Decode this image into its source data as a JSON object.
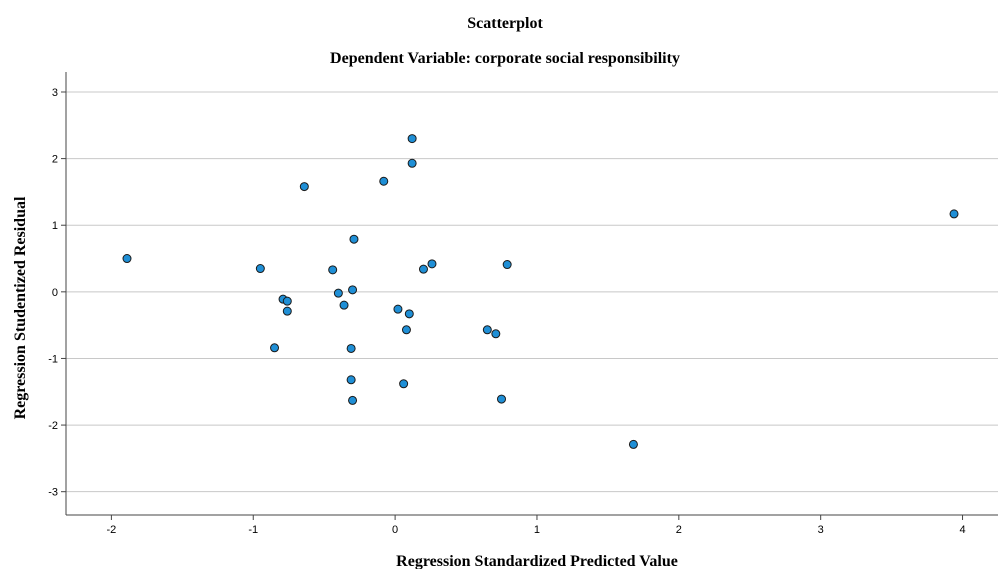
{
  "chart_data": {
    "type": "scatter",
    "title": "Scatterplot",
    "subtitle": "Dependent Variable: corporate social responsibility",
    "xlabel": "Regression Standardized Predicted Value",
    "ylabel": "Regression Studentized Residual",
    "xlim": [
      -2.32,
      4.25
    ],
    "ylim": [
      -3.35,
      3.3
    ],
    "x_ticks": [
      -2,
      -1,
      0,
      1,
      2,
      3,
      4
    ],
    "y_ticks": [
      3,
      2,
      1,
      0,
      -1,
      -2,
      -3
    ],
    "grid": "horizontal",
    "marker_color": "#1f8fd6",
    "series": [
      {
        "points": [
          {
            "x": -1.89,
            "y": 0.5
          },
          {
            "x": -0.95,
            "y": 0.35
          },
          {
            "x": -0.85,
            "y": -0.84
          },
          {
            "x": -0.79,
            "y": -0.11
          },
          {
            "x": -0.76,
            "y": -0.14
          },
          {
            "x": -0.76,
            "y": -0.29
          },
          {
            "x": -0.64,
            "y": 1.58
          },
          {
            "x": -0.44,
            "y": 0.33
          },
          {
            "x": -0.4,
            "y": -0.02
          },
          {
            "x": -0.36,
            "y": -0.2
          },
          {
            "x": -0.31,
            "y": -0.85
          },
          {
            "x": -0.31,
            "y": -1.32
          },
          {
            "x": -0.3,
            "y": 0.03
          },
          {
            "x": -0.3,
            "y": -1.63
          },
          {
            "x": -0.29,
            "y": 0.79
          },
          {
            "x": -0.08,
            "y": 1.66
          },
          {
            "x": 0.02,
            "y": -0.26
          },
          {
            "x": 0.06,
            "y": -1.38
          },
          {
            "x": 0.08,
            "y": -0.57
          },
          {
            "x": 0.1,
            "y": -0.33
          },
          {
            "x": 0.12,
            "y": 2.3
          },
          {
            "x": 0.12,
            "y": 1.93
          },
          {
            "x": 0.2,
            "y": 0.34
          },
          {
            "x": 0.26,
            "y": 0.42
          },
          {
            "x": 0.65,
            "y": -0.57
          },
          {
            "x": 0.71,
            "y": -0.63
          },
          {
            "x": 0.75,
            "y": -1.61
          },
          {
            "x": 0.79,
            "y": 0.41
          },
          {
            "x": 1.68,
            "y": -2.29
          },
          {
            "x": 3.94,
            "y": 1.17
          }
        ]
      }
    ]
  }
}
